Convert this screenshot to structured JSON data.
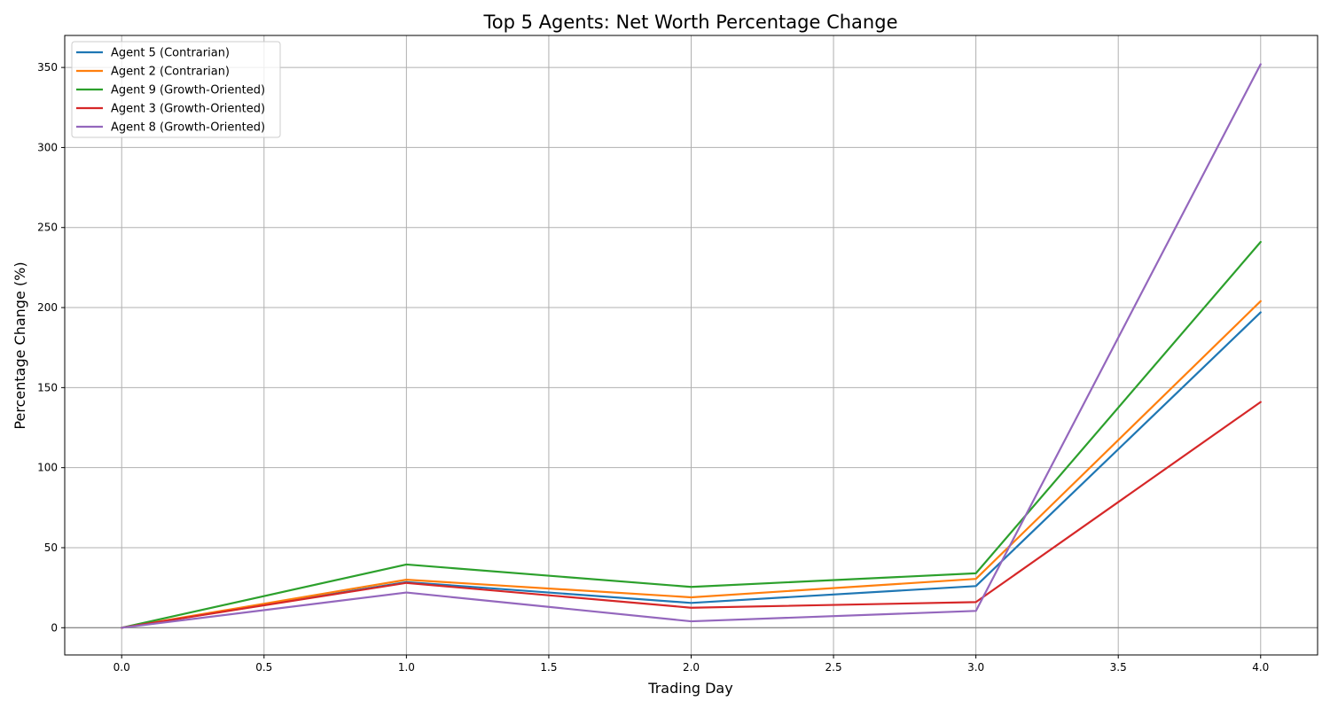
{
  "chart_data": {
    "type": "line",
    "title": "Top 5 Agents: Net Worth Percentage Change",
    "xlabel": "Trading Day",
    "ylabel": "Percentage Change (%)",
    "x": [
      0,
      1,
      2,
      3,
      4
    ],
    "xlim": [
      -0.2,
      4.2
    ],
    "ylim": [
      -17,
      370
    ],
    "xticks": [
      0.0,
      0.5,
      1.0,
      1.5,
      2.0,
      2.5,
      3.0,
      3.5,
      4.0
    ],
    "xtick_labels": [
      "0.0",
      "0.5",
      "1.0",
      "1.5",
      "2.0",
      "2.5",
      "3.0",
      "3.5",
      "4.0"
    ],
    "yticks": [
      0,
      50,
      100,
      150,
      200,
      250,
      300,
      350
    ],
    "ytick_labels": [
      "0",
      "50",
      "100",
      "150",
      "200",
      "250",
      "300",
      "350"
    ],
    "grid": true,
    "zero_line": true,
    "legend_position": "top-left",
    "series": [
      {
        "name": "Agent 5 (Contrarian)",
        "color": "#1f77b4",
        "values": [
          0,
          28.5,
          15.5,
          26,
          197
        ]
      },
      {
        "name": "Agent 2 (Contrarian)",
        "color": "#ff7f0e",
        "values": [
          0,
          30,
          19,
          30.5,
          204
        ]
      },
      {
        "name": "Agent 9 (Growth-Oriented)",
        "color": "#2ca02c",
        "values": [
          0,
          39.5,
          25.5,
          34,
          241
        ]
      },
      {
        "name": "Agent 3 (Growth-Oriented)",
        "color": "#d62728",
        "values": [
          0,
          28,
          12.5,
          16,
          141
        ]
      },
      {
        "name": "Agent 8 (Growth-Oriented)",
        "color": "#9467bd",
        "values": [
          0,
          22,
          4,
          10.5,
          352
        ]
      }
    ]
  }
}
